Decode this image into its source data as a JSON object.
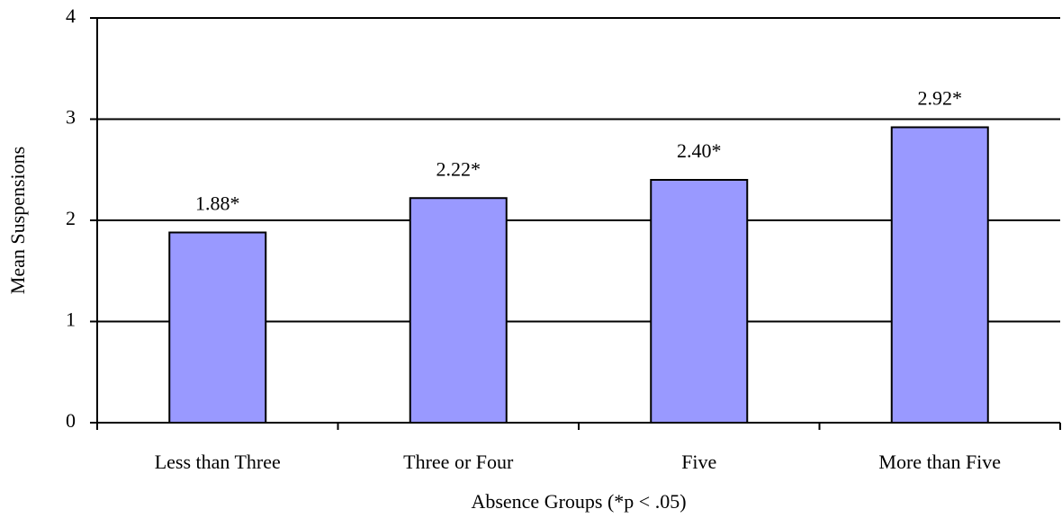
{
  "chart_data": {
    "type": "bar",
    "x_label": "Absence Groups (*p < .05)",
    "y_label": "Mean Suspensions",
    "categories": [
      "Less than Three",
      "Three or Four",
      "Five",
      "More than Five"
    ],
    "values": [
      1.88,
      2.22,
      2.4,
      2.92
    ],
    "value_labels": [
      "1.88*",
      "2.22*",
      "2.40*",
      "2.92*"
    ],
    "color": "#9999ff",
    "ylim": [
      0,
      4
    ],
    "yticks": [
      0,
      1,
      2,
      3,
      4
    ],
    "grid": true
  }
}
